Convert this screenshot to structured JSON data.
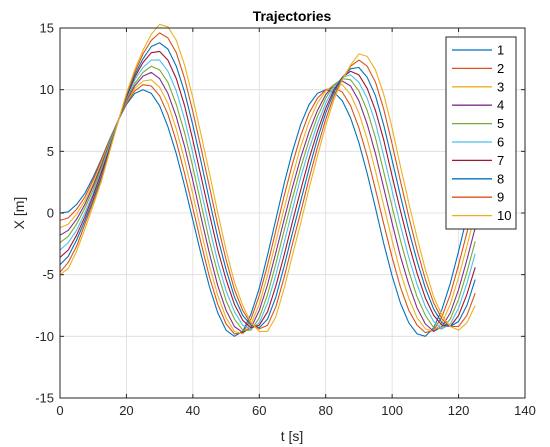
{
  "chart_data": {
    "type": "line",
    "title": "Trajectories",
    "xlabel": "t [s]",
    "ylabel": "X [m]",
    "xlim": [
      0,
      140
    ],
    "ylim": [
      -15,
      15
    ],
    "x_ticks": [
      0,
      20,
      40,
      60,
      80,
      100,
      120,
      140
    ],
    "y_ticks": [
      -15,
      -10,
      -5,
      0,
      5,
      10,
      15
    ],
    "grid": true,
    "legend_position": "top-right",
    "x": [
      0,
      2.5,
      5,
      7.5,
      10,
      12.5,
      15,
      17.5,
      20,
      22.5,
      25,
      27.5,
      30,
      32.5,
      35,
      37.5,
      40,
      42.5,
      45,
      47.5,
      50,
      52.5,
      55,
      57.5,
      60,
      62.5,
      65,
      67.5,
      70,
      72.5,
      75,
      77.5,
      80,
      82.5,
      85,
      87.5,
      90,
      92.5,
      95,
      97.5,
      100,
      102.5,
      105,
      107.5,
      110,
      112.5,
      115,
      117.5,
      120,
      122.5,
      125
    ],
    "series": [
      {
        "name": "1",
        "color": "#0072BD",
        "values": [
          0.0,
          0.1,
          0.7,
          1.6,
          2.9,
          4.4,
          6.0,
          7.5,
          8.8,
          9.7,
          10.0,
          9.7,
          8.7,
          7.0,
          4.8,
          2.2,
          -0.6,
          -3.4,
          -6.0,
          -8.1,
          -9.5,
          -10.0,
          -9.6,
          -8.2,
          -6.1,
          -3.4,
          -0.5,
          2.4,
          5.0,
          7.2,
          8.8,
          9.7,
          10.0,
          9.8,
          9.1,
          7.7,
          5.7,
          3.2,
          0.4,
          -2.5,
          -5.1,
          -7.3,
          -8.9,
          -9.8,
          -10.0,
          -9.3,
          -7.8,
          -5.7,
          -3.1,
          -0.3,
          2.8
        ]
      },
      {
        "name": "2",
        "color": "#D95319",
        "values": [
          -0.6,
          -0.4,
          0.3,
          1.3,
          2.7,
          4.3,
          5.9,
          7.5,
          8.9,
          9.9,
          10.4,
          10.3,
          9.5,
          8.0,
          5.8,
          3.2,
          0.4,
          -2.5,
          -5.2,
          -7.4,
          -9.0,
          -9.8,
          -9.7,
          -8.6,
          -6.7,
          -4.2,
          -1.4,
          1.4,
          4.0,
          6.3,
          8.1,
          9.3,
          10.0,
          10.2,
          9.8,
          8.7,
          6.9,
          4.6,
          1.9,
          -0.9,
          -3.6,
          -6.0,
          -7.9,
          -9.1,
          -9.7,
          -9.5,
          -8.4,
          -6.6,
          -4.2,
          -1.6,
          1.2
        ]
      },
      {
        "name": "3",
        "color": "#EDB120",
        "values": [
          -1.2,
          -0.9,
          -0.1,
          1.0,
          2.4,
          4.1,
          5.8,
          7.5,
          9.0,
          10.1,
          10.7,
          10.8,
          10.2,
          8.9,
          6.8,
          4.3,
          1.5,
          -1.5,
          -4.3,
          -6.7,
          -8.5,
          -9.6,
          -9.8,
          -9.0,
          -7.4,
          -5.0,
          -2.3,
          0.4,
          3.0,
          5.4,
          7.4,
          8.9,
          9.9,
          10.4,
          10.4,
          9.6,
          8.1,
          6.0,
          3.4,
          0.6,
          -2.2,
          -4.8,
          -6.9,
          -8.5,
          -9.4,
          -9.6,
          -8.9,
          -7.4,
          -5.2,
          -2.7,
          0.0
        ]
      },
      {
        "name": "4",
        "color": "#7E2F8E",
        "values": [
          -1.8,
          -1.4,
          -0.5,
          0.7,
          2.2,
          3.9,
          5.7,
          7.5,
          9.1,
          10.3,
          11.1,
          11.4,
          10.9,
          9.7,
          7.8,
          5.4,
          2.6,
          -0.4,
          -3.3,
          -5.9,
          -7.9,
          -9.2,
          -9.7,
          -9.3,
          -7.9,
          -5.8,
          -3.2,
          -0.5,
          2.1,
          4.5,
          6.6,
          8.3,
          9.6,
          10.4,
          10.7,
          10.3,
          9.1,
          7.2,
          4.8,
          2.0,
          -0.8,
          -3.5,
          -5.8,
          -7.7,
          -9.0,
          -9.6,
          -9.2,
          -8.1,
          -6.2,
          -3.8,
          -1.2
        ]
      },
      {
        "name": "5",
        "color": "#77AC30",
        "values": [
          -2.4,
          -1.9,
          -0.9,
          0.4,
          1.9,
          3.7,
          5.6,
          7.5,
          9.2,
          10.5,
          11.4,
          11.9,
          11.6,
          10.6,
          8.8,
          6.5,
          3.7,
          0.7,
          -2.3,
          -4.9,
          -7.1,
          -8.6,
          -9.5,
          -9.5,
          -8.5,
          -6.6,
          -4.1,
          -1.4,
          1.2,
          3.7,
          5.9,
          7.8,
          9.3,
          10.4,
          10.9,
          10.8,
          9.9,
          8.3,
          6.1,
          3.3,
          0.5,
          -2.2,
          -4.7,
          -6.8,
          -8.3,
          -9.3,
          -9.4,
          -8.6,
          -7.0,
          -4.8,
          -2.3
        ]
      },
      {
        "name": "6",
        "color": "#4DBEEE",
        "values": [
          -3.0,
          -2.4,
          -1.4,
          0.0,
          1.6,
          3.5,
          5.5,
          7.5,
          9.3,
          10.8,
          11.8,
          12.4,
          12.4,
          11.5,
          9.9,
          7.6,
          4.8,
          1.8,
          -1.2,
          -4.0,
          -6.3,
          -8.0,
          -9.1,
          -9.4,
          -8.9,
          -7.3,
          -5.0,
          -2.4,
          0.3,
          2.9,
          5.2,
          7.2,
          8.9,
          10.2,
          11.0,
          11.2,
          10.6,
          9.3,
          7.3,
          4.6,
          1.8,
          -1.0,
          -3.6,
          -5.8,
          -7.6,
          -8.8,
          -9.4,
          -9.0,
          -7.7,
          -5.7,
          -3.3
        ]
      },
      {
        "name": "7",
        "color": "#A2142F",
        "values": [
          -3.6,
          -3.0,
          -1.8,
          -0.3,
          1.4,
          3.3,
          5.3,
          7.4,
          9.4,
          11.0,
          12.2,
          13.0,
          13.1,
          12.4,
          10.9,
          8.7,
          5.9,
          2.9,
          -0.1,
          -3.0,
          -5.4,
          -7.4,
          -8.7,
          -9.3,
          -9.1,
          -8.0,
          -5.9,
          -3.4,
          -0.7,
          1.9,
          4.4,
          6.6,
          8.5,
          10.0,
          11.0,
          11.5,
          11.2,
          10.1,
          8.3,
          5.9,
          3.0,
          0.2,
          -2.5,
          -4.9,
          -6.9,
          -8.3,
          -9.1,
          -9.2,
          -8.3,
          -6.6,
          -4.4
        ]
      },
      {
        "name": "8",
        "color": "#0072BD",
        "values": [
          -4.2,
          -3.5,
          -2.2,
          -0.6,
          1.1,
          3.0,
          5.2,
          7.4,
          9.5,
          11.2,
          12.5,
          13.5,
          13.8,
          13.3,
          11.9,
          9.8,
          7.1,
          4.1,
          1.0,
          -2.0,
          -4.6,
          -6.8,
          -8.3,
          -9.1,
          -9.3,
          -8.6,
          -6.8,
          -4.3,
          -1.6,
          1.0,
          3.6,
          6.0,
          8.1,
          9.8,
          11.0,
          11.7,
          11.8,
          11.0,
          9.5,
          7.1,
          4.3,
          1.4,
          -1.4,
          -3.9,
          -6.1,
          -7.8,
          -8.9,
          -9.2,
          -8.8,
          -7.5,
          -5.4
        ]
      },
      {
        "name": "9",
        "color": "#D95319",
        "values": [
          -4.8,
          -4.0,
          -2.7,
          -0.9,
          0.9,
          2.8,
          5.1,
          7.4,
          9.6,
          11.4,
          12.9,
          14.0,
          14.6,
          14.2,
          13.0,
          10.9,
          8.2,
          5.2,
          2.1,
          -1.0,
          -3.8,
          -6.2,
          -7.9,
          -9.0,
          -9.4,
          -9.1,
          -7.6,
          -5.2,
          -2.5,
          0.1,
          2.8,
          5.3,
          7.6,
          9.5,
          10.9,
          11.9,
          12.4,
          11.9,
          10.6,
          8.4,
          5.6,
          2.6,
          -0.3,
          -3.0,
          -5.4,
          -7.3,
          -8.6,
          -9.2,
          -9.2,
          -8.3,
          -6.5
        ]
      },
      {
        "name": "10",
        "color": "#EDB120",
        "values": [
          -5.0,
          -4.5,
          -3.1,
          -1.3,
          0.6,
          2.6,
          5.0,
          7.4,
          9.7,
          11.6,
          13.2,
          14.5,
          15.3,
          15.1,
          14.0,
          12.0,
          9.3,
          6.3,
          3.2,
          0.0,
          -3.0,
          -5.6,
          -7.5,
          -8.9,
          -9.6,
          -9.6,
          -8.4,
          -6.1,
          -3.4,
          -0.8,
          2.0,
          4.6,
          7.1,
          9.2,
          10.8,
          12.0,
          12.9,
          12.7,
          11.6,
          9.6,
          6.9,
          3.8,
          0.8,
          -2.0,
          -4.6,
          -6.8,
          -8.3,
          -9.2,
          -9.5,
          -8.9,
          -7.5
        ]
      }
    ]
  }
}
